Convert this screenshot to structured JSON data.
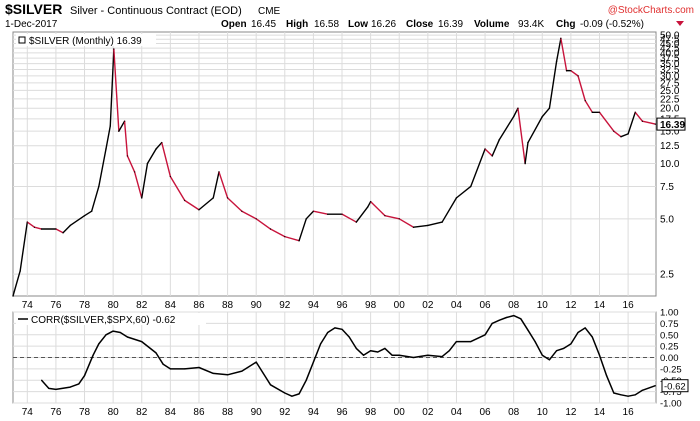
{
  "header": {
    "symbol": "$SILVER",
    "description": "Silver - Continuous Contract (EOD)",
    "exchange": "CME",
    "brand": "@StockCharts.com",
    "date": "1-Dec-2017",
    "open_label": "Open",
    "open": "16.45",
    "high_label": "High",
    "high": "16.58",
    "low_label": "Low",
    "low": "16.26",
    "close_label": "Close",
    "close": "16.39",
    "volume_label": "Volume",
    "volume": "93.4K",
    "chg_label": "Chg",
    "chg": "-0.09 (-0.52%)"
  },
  "colors": {
    "up": "#000000",
    "down": "#c8143c",
    "grid": "#dcdcdc",
    "corr_line": "#000000",
    "zero_line": "#555555",
    "brand": "#e03030",
    "last_label_bg": "#ffffff"
  },
  "chart_data": [
    {
      "type": "line",
      "title": "",
      "legend": "$SILVER (Monthly) 16.39",
      "xlabel": "",
      "ylabel": "",
      "scale": "log",
      "last_value": "16.39",
      "ylim": [
        1.9,
        52
      ],
      "y_ticks": [
        "2.5",
        "5.0",
        "7.5",
        "10.0",
        "12.5",
        "15.0",
        "17.5",
        "20.0",
        "22.5",
        "25.0",
        "27.5",
        "30.0",
        "32.5",
        "35.0",
        "37.5",
        "40.0",
        "42.5",
        "45.0",
        "47.5",
        "50.0"
      ],
      "x_ticks": [
        "74",
        "76",
        "78",
        "80",
        "82",
        "84",
        "86",
        "88",
        "90",
        "92",
        "94",
        "96",
        "98",
        "00",
        "02",
        "04",
        "06",
        "08",
        "10",
        "12",
        "14",
        "16"
      ],
      "x": [
        1973,
        1973.5,
        1974,
        1974.5,
        1975,
        1976,
        1976.5,
        1977,
        1978,
        1978.5,
        1979,
        1979.5,
        1979.8,
        1980.05,
        1980.4,
        1980.8,
        1981,
        1981.5,
        1982,
        1982.4,
        1983,
        1983.4,
        1984,
        1985,
        1986,
        1987,
        1987.4,
        1988,
        1989,
        1990,
        1991,
        1992,
        1993,
        1993.5,
        1994,
        1995,
        1996,
        1997,
        1997.8,
        1998,
        1999,
        2000,
        2001,
        2002,
        2003,
        2004,
        2005,
        2006,
        2006.5,
        2007,
        2008,
        2008.3,
        2008.8,
        2009,
        2010,
        2010.5,
        2011,
        2011.3,
        2011.7,
        2012,
        2012.5,
        2013,
        2013.5,
        2014,
        2015,
        2015.5,
        2016,
        2016.5,
        2017,
        2017.9
      ],
      "values": [
        1.9,
        2.6,
        4.8,
        4.5,
        4.4,
        4.4,
        4.2,
        4.6,
        5.2,
        5.5,
        7.5,
        12,
        16,
        42,
        15,
        17,
        11,
        9,
        6.5,
        10,
        12,
        13,
        8.5,
        6.3,
        5.6,
        6.5,
        9,
        6.5,
        5.5,
        5,
        4.4,
        4,
        3.8,
        5,
        5.5,
        5.3,
        5.3,
        4.8,
        5.8,
        6.2,
        5.2,
        5.0,
        4.5,
        4.6,
        4.8,
        6.5,
        7.5,
        12,
        11,
        13.5,
        18,
        20,
        10,
        13,
        18,
        20,
        36,
        48,
        32,
        32,
        30,
        22,
        19,
        19,
        15,
        14,
        14.5,
        19,
        17,
        16.39
      ]
    },
    {
      "type": "line",
      "title": "",
      "legend": "CORR($SILVER,$SPX,60) -0.62",
      "xlabel": "",
      "ylabel": "",
      "last_value": "-0.62",
      "ylim": [
        -1.0,
        1.0
      ],
      "y_ticks": [
        "1.00",
        "0.75",
        "0.50",
        "0.25",
        "0.00",
        "-0.25",
        "-0.50",
        "-0.75",
        "-1.00"
      ],
      "x": [
        1975,
        1975.5,
        1976,
        1977,
        1977.6,
        1978,
        1978.6,
        1979,
        1979.5,
        1980,
        1980.5,
        1981,
        1982,
        1983,
        1983.5,
        1984,
        1985,
        1986,
        1987,
        1988,
        1989,
        1990,
        1990.5,
        1991,
        1992,
        1992.5,
        1993,
        1993.5,
        1994,
        1994.5,
        1995,
        1995.5,
        1996,
        1996.5,
        1997,
        1997.5,
        1998,
        1998.5,
        1999,
        1999.5,
        2000,
        2001,
        2002,
        2003,
        2003.5,
        2004,
        2005,
        2006,
        2006.5,
        2007,
        2007.5,
        2008,
        2008.5,
        2009,
        2009.5,
        2010,
        2010.5,
        2011,
        2011.5,
        2012,
        2012.5,
        2013,
        2013.5,
        2014,
        2014.5,
        2015,
        2015.5,
        2016,
        2016.5,
        2017,
        2017.9
      ],
      "values": [
        -0.5,
        -0.68,
        -0.7,
        -0.65,
        -0.58,
        -0.4,
        0.05,
        0.3,
        0.5,
        0.58,
        0.55,
        0.45,
        0.35,
        0.1,
        -0.15,
        -0.25,
        -0.25,
        -0.22,
        -0.35,
        -0.38,
        -0.3,
        -0.1,
        -0.35,
        -0.6,
        -0.78,
        -0.85,
        -0.8,
        -0.5,
        -0.1,
        0.3,
        0.55,
        0.65,
        0.62,
        0.45,
        0.2,
        0.05,
        0.15,
        0.12,
        0.2,
        0.05,
        0.05,
        0.0,
        0.05,
        0.02,
        0.15,
        0.35,
        0.35,
        0.5,
        0.75,
        0.82,
        0.88,
        0.92,
        0.85,
        0.6,
        0.35,
        0.05,
        -0.05,
        0.15,
        0.2,
        0.3,
        0.55,
        0.65,
        0.45,
        0.05,
        -0.4,
        -0.78,
        -0.82,
        -0.85,
        -0.82,
        -0.72,
        -0.62
      ]
    }
  ]
}
